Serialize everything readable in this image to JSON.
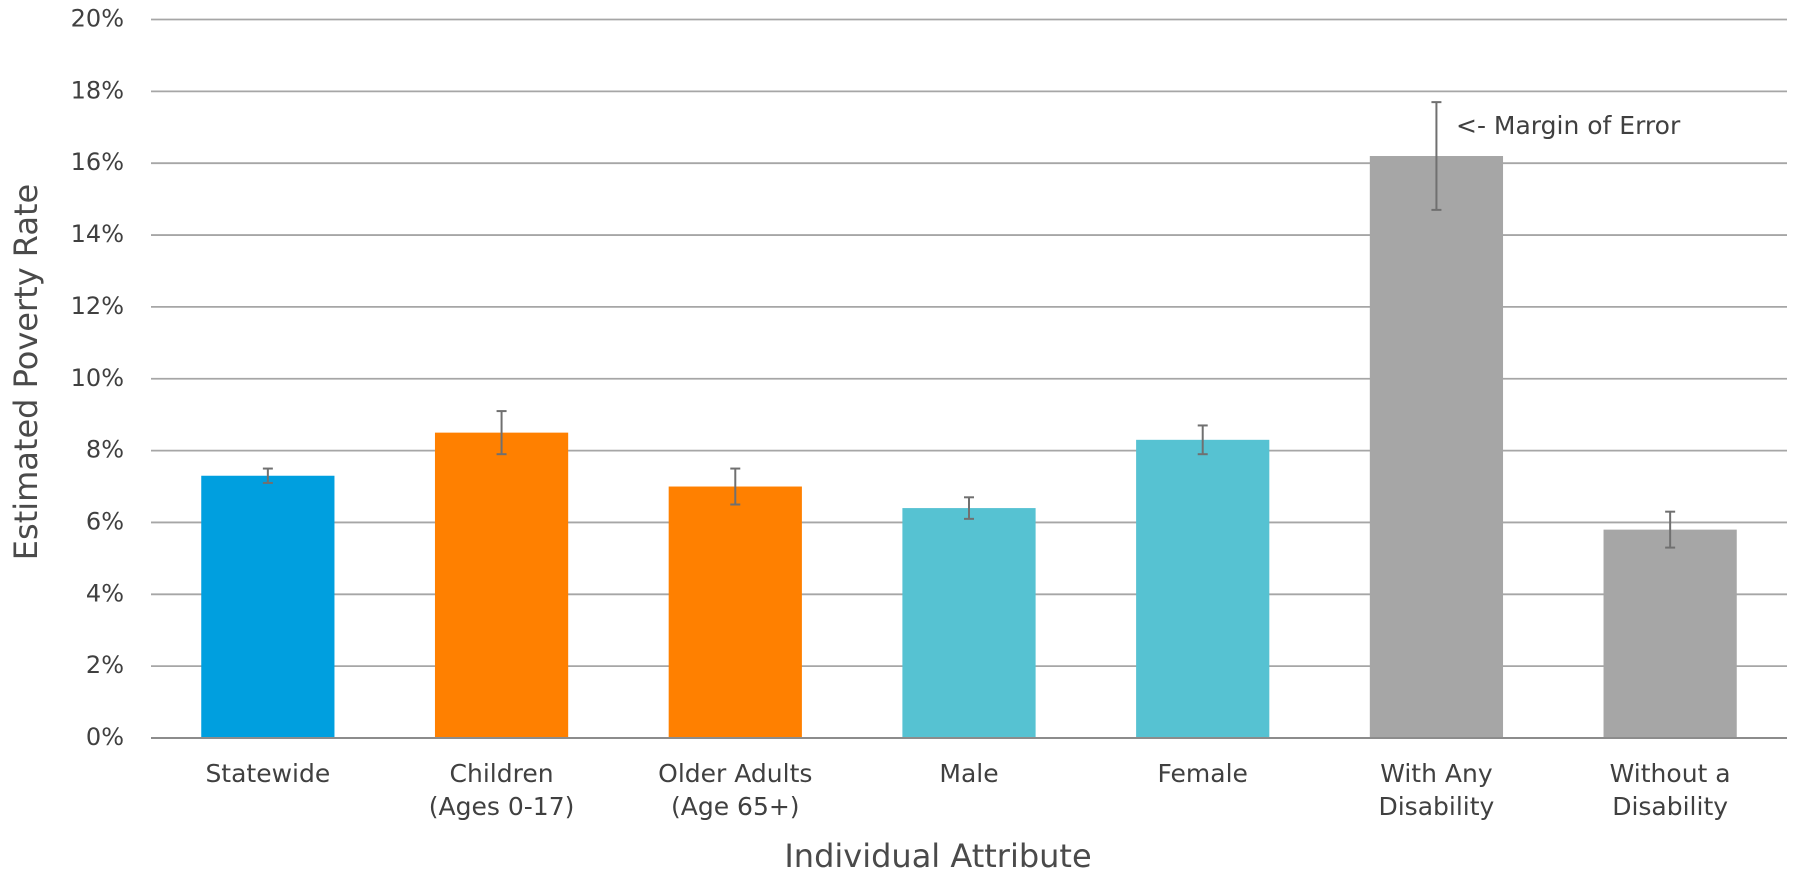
{
  "chart_data": {
    "type": "bar",
    "categories": [
      [
        "Statewide"
      ],
      [
        "Children",
        "(Ages 0-17)"
      ],
      [
        "Older Adults",
        "(Age 65+)"
      ],
      [
        "Male"
      ],
      [
        "Female"
      ],
      [
        "With Any",
        "Disability"
      ],
      [
        "Without a",
        "Disability"
      ]
    ],
    "values": [
      7.3,
      8.5,
      7.0,
      6.4,
      8.3,
      16.2,
      5.8
    ],
    "errors": [
      0.2,
      0.6,
      0.5,
      0.3,
      0.4,
      1.5,
      0.5
    ],
    "colors": [
      "#009fdf",
      "#ff8000",
      "#ff8000",
      "#56c2d2",
      "#56c2d2",
      "#a6a6a6",
      "#a6a6a6"
    ],
    "ylim": [
      0,
      20
    ],
    "yticks": [
      {
        "value": 0,
        "label": "0%"
      },
      {
        "value": 2,
        "label": "2%"
      },
      {
        "value": 4,
        "label": "4%"
      },
      {
        "value": 6,
        "label": "6%"
      },
      {
        "value": 8,
        "label": "8%"
      },
      {
        "value": 10,
        "label": "10%"
      },
      {
        "value": 12,
        "label": "12%"
      },
      {
        "value": 14,
        "label": "14%"
      },
      {
        "value": 16,
        "label": "16%"
      },
      {
        "value": 18,
        "label": "18%"
      },
      {
        "value": 20,
        "label": "20%"
      }
    ],
    "grid": true,
    "x_label": "Individual  Attribute",
    "y_label": "Estimated Poverty Rate",
    "annotation": "<- Margin of Error"
  }
}
